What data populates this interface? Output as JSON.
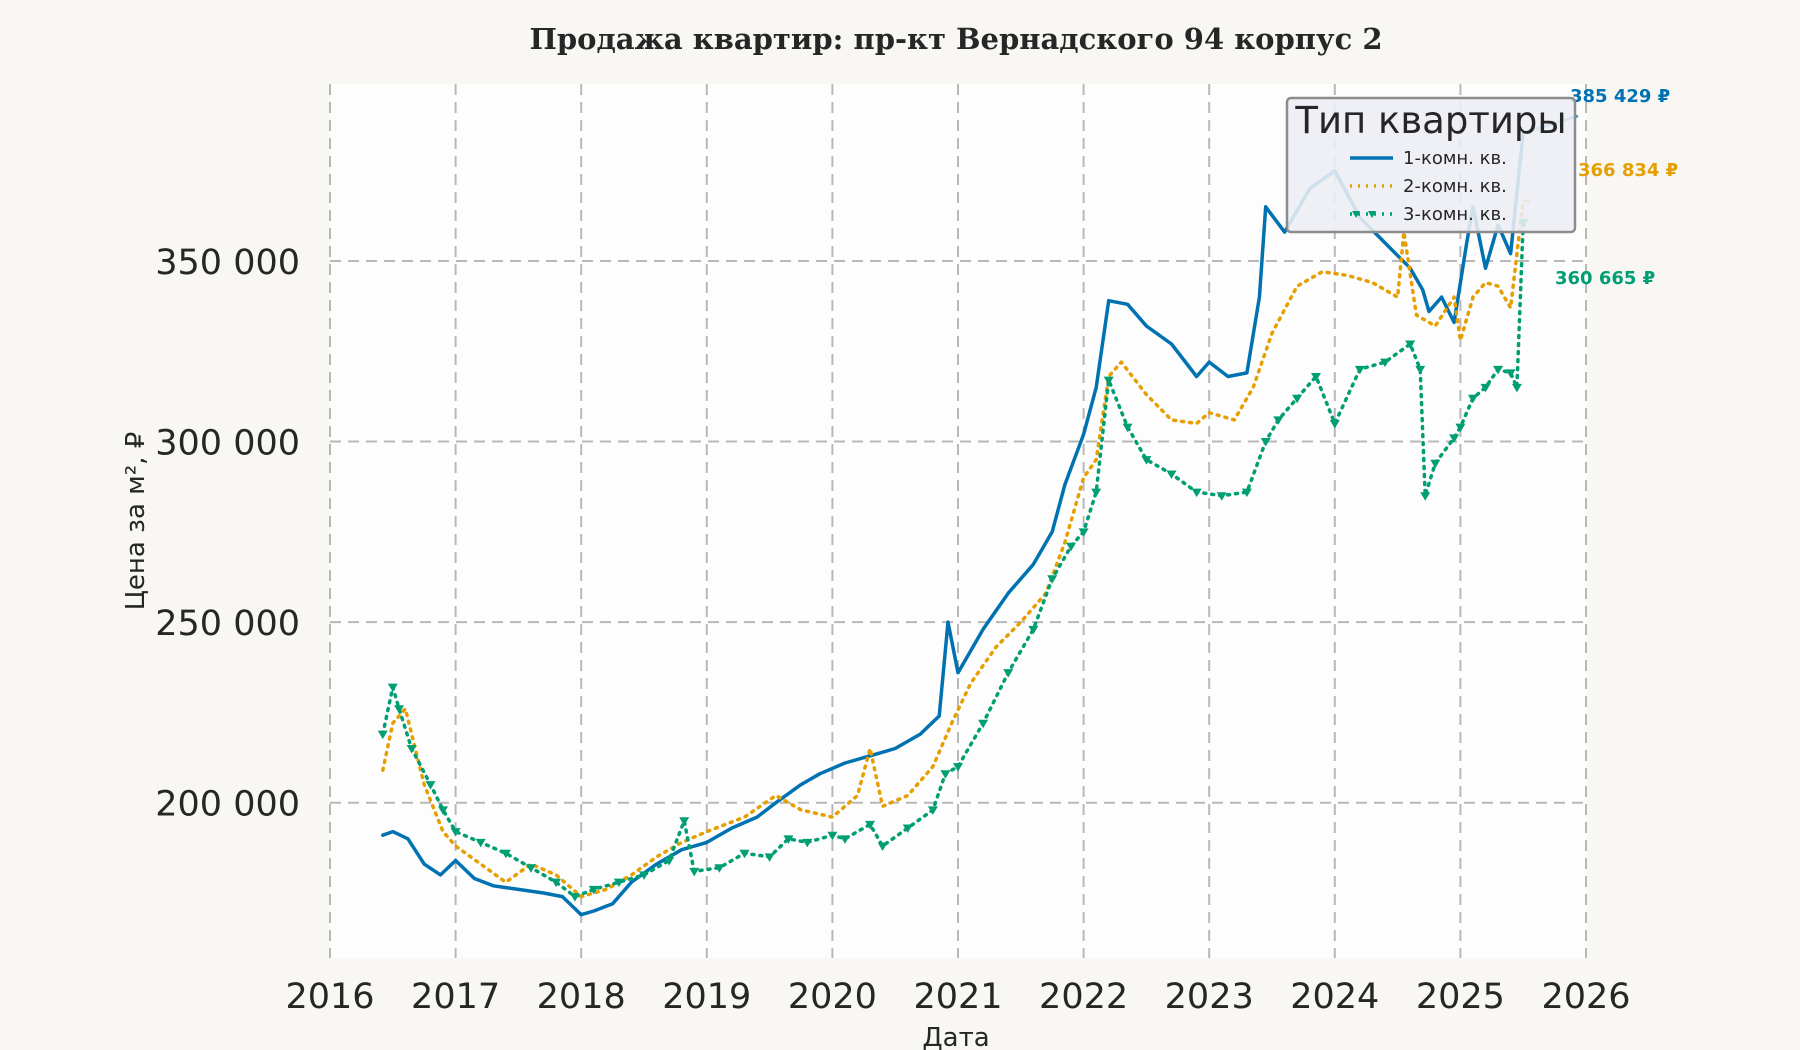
{
  "chart_data": {
    "type": "line",
    "title": "Продажа квартир: пр-кт Вернадского 94 корпус 2",
    "xlabel": "Дата",
    "ylabel": "Цена за м², ₽",
    "xlim": [
      2016,
      2026
    ],
    "ylim": [
      157000,
      399000
    ],
    "x_ticks": [
      "2016",
      "2017",
      "2018",
      "2019",
      "2020",
      "2021",
      "2022",
      "2023",
      "2024",
      "2025",
      "2026"
    ],
    "y_ticks": [
      {
        "value": 200000,
        "label": "200 000"
      },
      {
        "value": 250000,
        "label": "250 000"
      },
      {
        "value": 300000,
        "label": "300 000"
      },
      {
        "value": 350000,
        "label": "350 000"
      }
    ],
    "grid": true,
    "legend": {
      "title": "Тип квартиры",
      "placement": "top-right"
    },
    "series": [
      {
        "name": "1-комн. кв.",
        "color": "#0072b2",
        "style": "solid",
        "end_label": "385 429 ₽",
        "x": [
          2016.42,
          2016.5,
          2016.62,
          2016.75,
          2016.88,
          2017.0,
          2017.15,
          2017.3,
          2017.5,
          2017.7,
          2017.85,
          2018.0,
          2018.1,
          2018.25,
          2018.4,
          2018.6,
          2018.8,
          2019.0,
          2019.2,
          2019.4,
          2019.55,
          2019.75,
          2019.9,
          2020.1,
          2020.3,
          2020.5,
          2020.7,
          2020.85,
          2020.92,
          2021.0,
          2021.2,
          2021.4,
          2021.6,
          2021.75,
          2021.85,
          2022.0,
          2022.1,
          2022.2,
          2022.35,
          2022.5,
          2022.7,
          2022.9,
          2023.0,
          2023.15,
          2023.3,
          2023.4,
          2023.45,
          2023.6,
          2023.8,
          2024.0,
          2024.2,
          2024.4,
          2024.6,
          2024.7,
          2024.75,
          2024.85,
          2024.95,
          2025.05,
          2025.1,
          2025.2,
          2025.3,
          2025.4,
          2025.5
        ],
        "y": [
          191000,
          192000,
          190000,
          183000,
          180000,
          184000,
          179000,
          177000,
          176000,
          175000,
          174000,
          169000,
          170000,
          172000,
          178000,
          183000,
          187000,
          189000,
          193000,
          196000,
          200000,
          205000,
          208000,
          211000,
          213000,
          215000,
          219000,
          224000,
          250000,
          236000,
          248000,
          258000,
          266000,
          275000,
          288000,
          302000,
          315000,
          339000,
          338000,
          332000,
          327000,
          318000,
          322000,
          318000,
          319000,
          340000,
          365000,
          358000,
          370000,
          375000,
          362000,
          355000,
          348000,
          342000,
          336000,
          340000,
          333000,
          355000,
          365000,
          348000,
          360000,
          352000,
          385429
        ]
      },
      {
        "name": "2-комн. кв.",
        "color": "#e69f00",
        "style": "dotted",
        "end_label": "366 834 ₽",
        "x": [
          2016.42,
          2016.5,
          2016.6,
          2016.75,
          2016.9,
          2017.0,
          2017.2,
          2017.4,
          2017.6,
          2017.8,
          2018.0,
          2018.2,
          2018.4,
          2018.6,
          2018.8,
          2019.0,
          2019.3,
          2019.55,
          2019.75,
          2020.0,
          2020.2,
          2020.3,
          2020.4,
          2020.6,
          2020.8,
          2020.95,
          2021.1,
          2021.3,
          2021.5,
          2021.7,
          2021.85,
          2022.0,
          2022.1,
          2022.2,
          2022.3,
          2022.5,
          2022.7,
          2022.9,
          2023.0,
          2023.2,
          2023.35,
          2023.5,
          2023.7,
          2023.9,
          2024.1,
          2024.3,
          2024.5,
          2024.55,
          2024.65,
          2024.8,
          2024.95,
          2025.0,
          2025.1,
          2025.2,
          2025.3,
          2025.4,
          2025.5
        ],
        "y": [
          209000,
          222000,
          226000,
          205000,
          192000,
          188000,
          183000,
          178000,
          183000,
          180000,
          174000,
          176000,
          180000,
          185000,
          189000,
          192000,
          196000,
          202000,
          198000,
          196000,
          202000,
          215000,
          199000,
          202000,
          210000,
          222000,
          233000,
          243000,
          250000,
          258000,
          272000,
          290000,
          295000,
          318000,
          322000,
          313000,
          306000,
          305000,
          308000,
          306000,
          315000,
          330000,
          343000,
          347000,
          346000,
          344000,
          340000,
          358000,
          335000,
          332000,
          340000,
          328000,
          340000,
          344000,
          343000,
          337000,
          366834
        ]
      },
      {
        "name": "3-комн. кв.",
        "color": "#009e73",
        "style": "dotted-triangle",
        "end_label": "360 665 ₽",
        "x": [
          2016.42,
          2016.5,
          2016.55,
          2016.65,
          2016.8,
          2016.9,
          2017.0,
          2017.2,
          2017.4,
          2017.6,
          2017.8,
          2017.95,
          2018.1,
          2018.3,
          2018.5,
          2018.7,
          2018.82,
          2018.9,
          2019.1,
          2019.3,
          2019.5,
          2019.65,
          2019.8,
          2020.0,
          2020.1,
          2020.3,
          2020.4,
          2020.6,
          2020.8,
          2020.9,
          2021.0,
          2021.2,
          2021.4,
          2021.6,
          2021.75,
          2021.9,
          2022.0,
          2022.1,
          2022.2,
          2022.35,
          2022.5,
          2022.7,
          2022.9,
          2023.1,
          2023.3,
          2023.45,
          2023.55,
          2023.7,
          2023.85,
          2024.0,
          2024.2,
          2024.4,
          2024.6,
          2024.68,
          2024.72,
          2024.8,
          2024.95,
          2025.0,
          2025.1,
          2025.2,
          2025.3,
          2025.4,
          2025.45,
          2025.5
        ],
        "y": [
          219000,
          232000,
          226000,
          215000,
          205000,
          198000,
          192000,
          189000,
          186000,
          182000,
          178000,
          174000,
          176000,
          178000,
          180000,
          184000,
          195000,
          181000,
          182000,
          186000,
          185000,
          190000,
          189000,
          191000,
          190000,
          194000,
          188000,
          193000,
          198000,
          208000,
          210000,
          222000,
          236000,
          248000,
          262000,
          271000,
          275000,
          286000,
          317000,
          304000,
          295000,
          291000,
          286000,
          285000,
          286000,
          300000,
          306000,
          312000,
          318000,
          305000,
          320000,
          322000,
          327000,
          320000,
          285000,
          294000,
          301000,
          304000,
          312000,
          315000,
          320000,
          319000,
          315000,
          360665
        ]
      }
    ]
  }
}
